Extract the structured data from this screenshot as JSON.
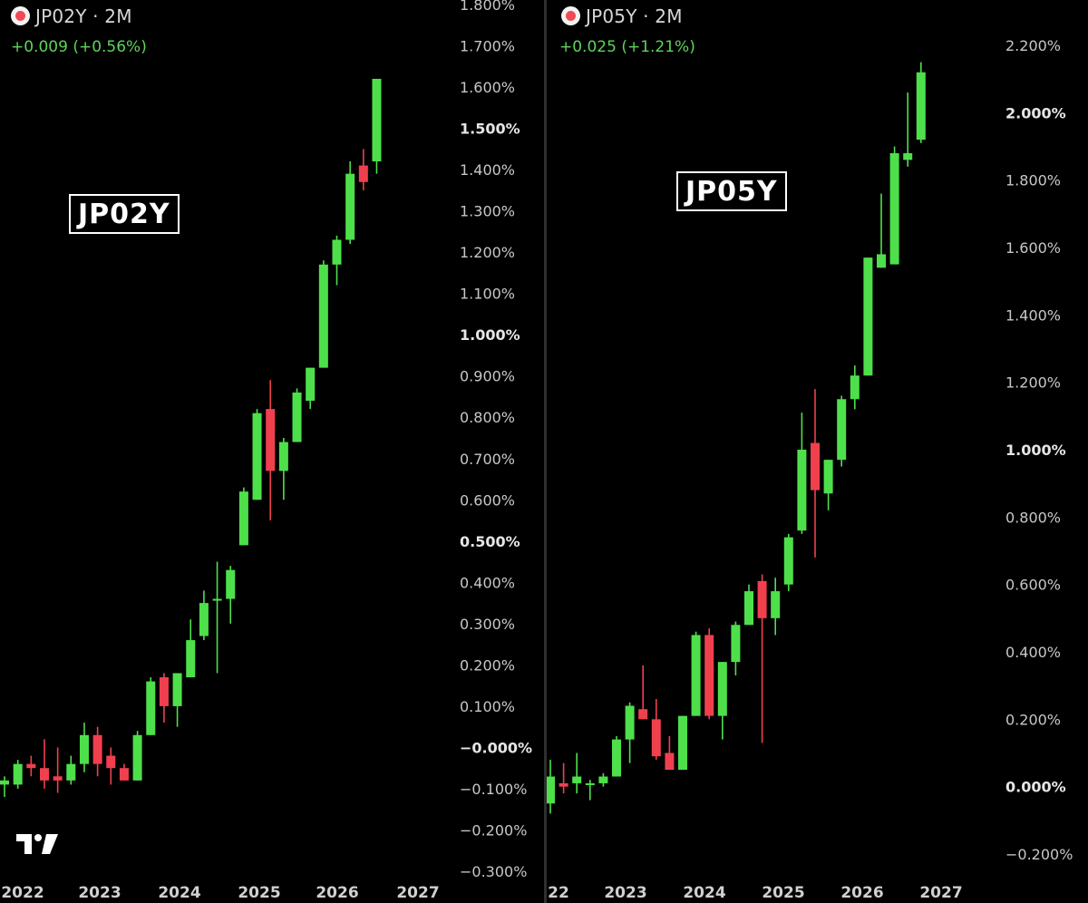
{
  "panels": [
    {
      "header": {
        "title": "JP02Y · 2M",
        "change": "+0.009 (+0.56%)"
      },
      "box_label": "JP02Y",
      "colors": {
        "up": "#4ee04b",
        "down": "#f0404e",
        "label": "#cfcfcf"
      }
    },
    {
      "header": {
        "title": "JP05Y · 2M",
        "change": "+0.025 (+1.21%)"
      },
      "box_label": "JP05Y",
      "colors": {
        "up": "#4ee04b",
        "down": "#f0404e",
        "label": "#cfcfcf"
      }
    }
  ],
  "logo": {
    "icon": "tradingview-logo-icon"
  },
  "chart_data": [
    {
      "type": "candlestick",
      "symbol": "JP02Y",
      "interval": "2M",
      "yaxis": {
        "range": [
          -0.3,
          1.8
        ],
        "ticks": [
          {
            "v": 1.8,
            "label": "1.800%",
            "bold": false
          },
          {
            "v": 1.7,
            "label": "1.700%",
            "bold": false
          },
          {
            "v": 1.6,
            "label": "1.600%",
            "bold": false
          },
          {
            "v": 1.5,
            "label": "1.500%",
            "bold": true
          },
          {
            "v": 1.4,
            "label": "1.400%",
            "bold": false
          },
          {
            "v": 1.3,
            "label": "1.300%",
            "bold": false
          },
          {
            "v": 1.2,
            "label": "1.200%",
            "bold": false
          },
          {
            "v": 1.1,
            "label": "1.100%",
            "bold": false
          },
          {
            "v": 1.0,
            "label": "1.000%",
            "bold": true
          },
          {
            "v": 0.9,
            "label": "0.900%",
            "bold": false
          },
          {
            "v": 0.8,
            "label": "0.800%",
            "bold": false
          },
          {
            "v": 0.7,
            "label": "0.700%",
            "bold": false
          },
          {
            "v": 0.6,
            "label": "0.600%",
            "bold": false
          },
          {
            "v": 0.5,
            "label": "0.500%",
            "bold": true
          },
          {
            "v": 0.4,
            "label": "0.400%",
            "bold": false
          },
          {
            "v": 0.3,
            "label": "0.300%",
            "bold": false
          },
          {
            "v": 0.2,
            "label": "0.200%",
            "bold": false
          },
          {
            "v": 0.1,
            "label": "0.100%",
            "bold": false
          },
          {
            "v": 0.0,
            "label": "−0.000%",
            "bold": true
          },
          {
            "v": -0.1,
            "label": "−0.100%",
            "bold": false
          },
          {
            "v": -0.2,
            "label": "−0.200%",
            "bold": false
          },
          {
            "v": -0.3,
            "label": "−0.300%",
            "bold": false
          }
        ]
      },
      "xaxis": {
        "ticks": [
          {
            "date": "2022-01",
            "label": "2022"
          },
          {
            "date": "2023-01",
            "label": "2023"
          },
          {
            "date": "2024-01",
            "label": "2024"
          },
          {
            "date": "2025-01",
            "label": "2025"
          },
          {
            "date": "2026-01",
            "label": "2026"
          },
          {
            "date": "2027-01",
            "label": "2027"
          }
        ],
        "candle_anchor": {
          "first_date": "2021-11",
          "months_per_candle": 2
        }
      },
      "candles": [
        {
          "date": "2021-11",
          "o": -0.09,
          "h": -0.07,
          "l": -0.12,
          "c": -0.08
        },
        {
          "date": "2022-01",
          "o": -0.09,
          "h": -0.03,
          "l": -0.1,
          "c": -0.04
        },
        {
          "date": "2022-03",
          "o": -0.04,
          "h": -0.02,
          "l": -0.07,
          "c": -0.05
        },
        {
          "date": "2022-05",
          "o": -0.05,
          "h": 0.02,
          "l": -0.1,
          "c": -0.08
        },
        {
          "date": "2022-07",
          "o": -0.07,
          "h": 0.0,
          "l": -0.11,
          "c": -0.08
        },
        {
          "date": "2022-09",
          "o": -0.08,
          "h": -0.02,
          "l": -0.09,
          "c": -0.04
        },
        {
          "date": "2022-11",
          "o": -0.04,
          "h": 0.06,
          "l": -0.06,
          "c": 0.03
        },
        {
          "date": "2022-13",
          "o": 0.03,
          "h": 0.05,
          "l": -0.07,
          "c": -0.04
        },
        {
          "date": "2023-03",
          "o": -0.02,
          "h": 0.0,
          "l": -0.09,
          "c": -0.05
        },
        {
          "date": "2023-05",
          "o": -0.05,
          "h": -0.04,
          "l": -0.08,
          "c": -0.08
        },
        {
          "date": "2023-07",
          "o": -0.08,
          "h": 0.04,
          "l": -0.08,
          "c": 0.03
        },
        {
          "date": "2023-09",
          "o": 0.03,
          "h": 0.17,
          "l": 0.03,
          "c": 0.16
        },
        {
          "date": "2023-11",
          "o": 0.17,
          "h": 0.18,
          "l": 0.06,
          "c": 0.1
        },
        {
          "date": "2024-01",
          "o": 0.1,
          "h": 0.18,
          "l": 0.05,
          "c": 0.18
        },
        {
          "date": "2024-03",
          "o": 0.17,
          "h": 0.31,
          "l": 0.17,
          "c": 0.26
        },
        {
          "date": "2024-05",
          "o": 0.27,
          "h": 0.38,
          "l": 0.26,
          "c": 0.35
        },
        {
          "date": "2024-07",
          "o": 0.36,
          "h": 0.45,
          "l": 0.18,
          "c": 0.36
        },
        {
          "date": "2024-09",
          "o": 0.36,
          "h": 0.44,
          "l": 0.3,
          "c": 0.43
        },
        {
          "date": "2024-11",
          "o": 0.49,
          "h": 0.63,
          "l": 0.49,
          "c": 0.62
        },
        {
          "date": "2025-01",
          "o": 0.6,
          "h": 0.82,
          "l": 0.6,
          "c": 0.81
        },
        {
          "date": "2025-03",
          "o": 0.82,
          "h": 0.89,
          "l": 0.55,
          "c": 0.67
        },
        {
          "date": "2025-05",
          "o": 0.67,
          "h": 0.75,
          "l": 0.6,
          "c": 0.74
        },
        {
          "date": "2025-07",
          "o": 0.74,
          "h": 0.87,
          "l": 0.74,
          "c": 0.86
        },
        {
          "date": "2025-09",
          "o": 0.84,
          "h": 0.92,
          "l": 0.82,
          "c": 0.92
        },
        {
          "date": "2025-11",
          "o": 0.92,
          "h": 1.18,
          "l": 0.92,
          "c": 1.17
        },
        {
          "date": "2026-01",
          "o": 1.17,
          "h": 1.24,
          "l": 1.12,
          "c": 1.23
        },
        {
          "date": "2026-03",
          "o": 1.23,
          "h": 1.42,
          "l": 1.22,
          "c": 1.39
        },
        {
          "date": "2026-05",
          "o": 1.41,
          "h": 1.45,
          "l": 1.35,
          "c": 1.37
        },
        {
          "date": "2026-07",
          "o": 1.42,
          "h": 1.62,
          "l": 1.39,
          "c": 1.62
        }
      ]
    },
    {
      "type": "candlestick",
      "symbol": "JP05Y",
      "interval": "2M",
      "yaxis": {
        "range": [
          -0.25,
          2.25
        ],
        "ticks": [
          {
            "v": 2.2,
            "label": "2.200%",
            "bold": false
          },
          {
            "v": 2.0,
            "label": "2.000%",
            "bold": true
          },
          {
            "v": 1.8,
            "label": "1.800%",
            "bold": false
          },
          {
            "v": 1.6,
            "label": "1.600%",
            "bold": false
          },
          {
            "v": 1.4,
            "label": "1.400%",
            "bold": false
          },
          {
            "v": 1.2,
            "label": "1.200%",
            "bold": false
          },
          {
            "v": 1.0,
            "label": "1.000%",
            "bold": true
          },
          {
            "v": 0.8,
            "label": "0.800%",
            "bold": false
          },
          {
            "v": 0.6,
            "label": "0.600%",
            "bold": false
          },
          {
            "v": 0.4,
            "label": "0.400%",
            "bold": false
          },
          {
            "v": 0.2,
            "label": "0.200%",
            "bold": false
          },
          {
            "v": 0.0,
            "label": "0.000%",
            "bold": true
          },
          {
            "v": -0.2,
            "label": "−0.200%",
            "bold": false
          }
        ]
      },
      "xaxis": {
        "ticks": [
          {
            "date": "2022-01",
            "label": "22"
          },
          {
            "date": "2023-01",
            "label": "2023"
          },
          {
            "date": "2024-01",
            "label": "2024"
          },
          {
            "date": "2025-01",
            "label": "2025"
          },
          {
            "date": "2026-01",
            "label": "2026"
          },
          {
            "date": "2027-01",
            "label": "2027"
          }
        ],
        "candle_anchor": {
          "first_date": "2021-11",
          "months_per_candle": 2
        }
      },
      "candles": [
        {
          "date": "2021-11",
          "o": -0.05,
          "h": 0.08,
          "l": -0.08,
          "c": 0.03
        },
        {
          "date": "2022-01",
          "o": 0.01,
          "h": 0.07,
          "l": -0.02,
          "c": 0.0
        },
        {
          "date": "2022-03",
          "o": 0.01,
          "h": 0.1,
          "l": -0.02,
          "c": 0.03
        },
        {
          "date": "2022-05",
          "o": 0.01,
          "h": 0.02,
          "l": -0.04,
          "c": 0.01
        },
        {
          "date": "2022-07",
          "o": 0.01,
          "h": 0.04,
          "l": 0.0,
          "c": 0.03
        },
        {
          "date": "2022-09",
          "o": 0.03,
          "h": 0.15,
          "l": 0.03,
          "c": 0.14
        },
        {
          "date": "2022-11",
          "o": 0.14,
          "h": 0.25,
          "l": 0.07,
          "c": 0.24
        },
        {
          "date": "2022-13",
          "o": 0.23,
          "h": 0.36,
          "l": 0.2,
          "c": 0.2
        },
        {
          "date": "2023-03",
          "o": 0.2,
          "h": 0.26,
          "l": 0.08,
          "c": 0.09
        },
        {
          "date": "2023-05",
          "o": 0.1,
          "h": 0.15,
          "l": 0.06,
          "c": 0.05
        },
        {
          "date": "2023-07",
          "o": 0.05,
          "h": 0.21,
          "l": 0.05,
          "c": 0.21
        },
        {
          "date": "2023-09",
          "o": 0.21,
          "h": 0.46,
          "l": 0.21,
          "c": 0.45
        },
        {
          "date": "2023-11",
          "o": 0.45,
          "h": 0.47,
          "l": 0.2,
          "c": 0.21
        },
        {
          "date": "2024-01",
          "o": 0.21,
          "h": 0.37,
          "l": 0.14,
          "c": 0.37
        },
        {
          "date": "2024-03",
          "o": 0.37,
          "h": 0.49,
          "l": 0.33,
          "c": 0.48
        },
        {
          "date": "2024-05",
          "o": 0.48,
          "h": 0.6,
          "l": 0.48,
          "c": 0.58
        },
        {
          "date": "2024-07",
          "o": 0.61,
          "h": 0.63,
          "l": 0.13,
          "c": 0.5
        },
        {
          "date": "2024-09",
          "o": 0.5,
          "h": 0.62,
          "l": 0.45,
          "c": 0.58
        },
        {
          "date": "2024-11",
          "o": 0.6,
          "h": 0.75,
          "l": 0.58,
          "c": 0.74
        },
        {
          "date": "2025-01",
          "o": 0.76,
          "h": 1.11,
          "l": 0.75,
          "c": 1.0
        },
        {
          "date": "2025-03",
          "o": 1.02,
          "h": 1.18,
          "l": 0.68,
          "c": 0.88
        },
        {
          "date": "2025-05",
          "o": 0.87,
          "h": 0.97,
          "l": 0.82,
          "c": 0.97
        },
        {
          "date": "2025-07",
          "o": 0.97,
          "h": 1.16,
          "l": 0.95,
          "c": 1.15
        },
        {
          "date": "2025-09",
          "o": 1.15,
          "h": 1.25,
          "l": 1.12,
          "c": 1.22
        },
        {
          "date": "2025-11",
          "o": 1.22,
          "h": 1.57,
          "l": 1.22,
          "c": 1.57
        },
        {
          "date": "2026-01",
          "o": 1.54,
          "h": 1.76,
          "l": 1.54,
          "c": 1.58
        },
        {
          "date": "2026-03",
          "o": 1.55,
          "h": 1.9,
          "l": 1.55,
          "c": 1.88
        },
        {
          "date": "2026-05",
          "o": 1.86,
          "h": 2.06,
          "l": 1.84,
          "c": 1.88
        },
        {
          "date": "2026-07",
          "o": 1.92,
          "h": 2.15,
          "l": 1.91,
          "c": 2.12
        }
      ]
    }
  ]
}
